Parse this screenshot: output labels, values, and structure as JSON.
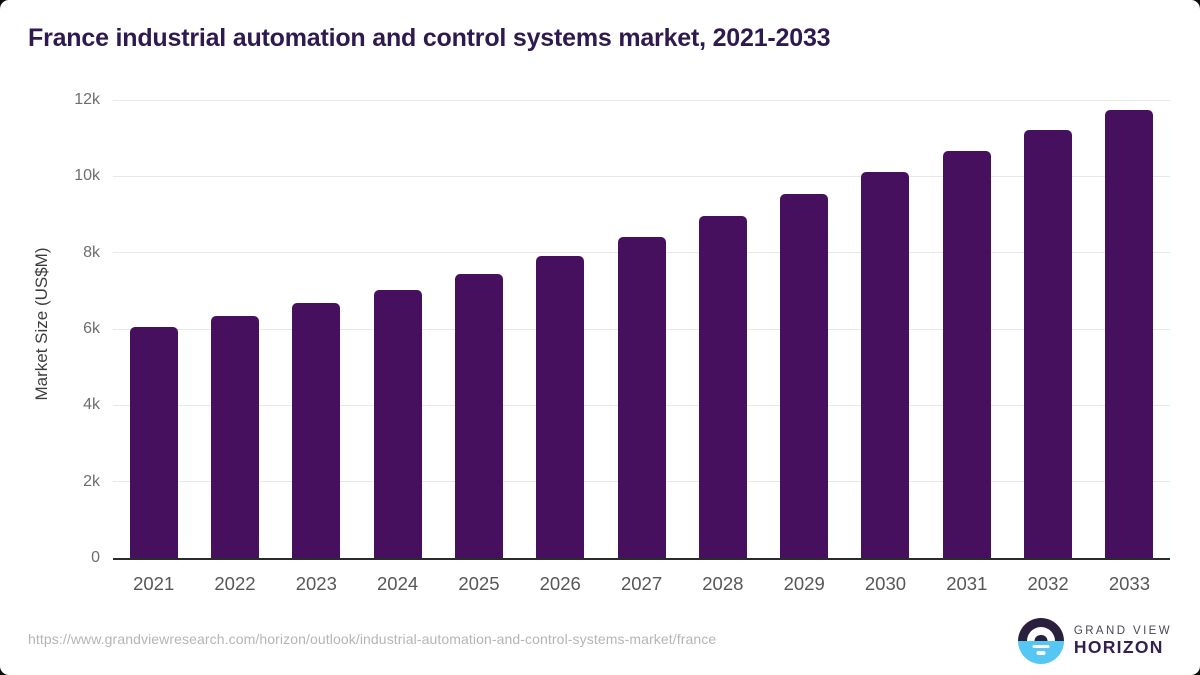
{
  "title": "France industrial automation and control systems market, 2021-2033",
  "footer": {
    "source_url": "https://www.grandviewresearch.com/horizon/outlook/industrial-automation-and-control-systems-market/france",
    "logo": {
      "line1": "GRAND VIEW",
      "line2": "HORIZON"
    }
  },
  "colors": {
    "bar": "#47105f",
    "title_text": "#2e1a4e",
    "gridline": "#e8e8e8",
    "axis_line": "#2b2b2b",
    "y_tick_text": "#6e6e6e",
    "x_tick_text": "#575757",
    "url_text": "#b5b5b5",
    "logo_dark": "#2a1f3d",
    "logo_blue": "#56c6f2"
  },
  "chart_data": {
    "type": "bar",
    "title": "France industrial automation and control systems market, 2021-2033",
    "categories": [
      "2021",
      "2022",
      "2023",
      "2024",
      "2025",
      "2026",
      "2027",
      "2028",
      "2029",
      "2030",
      "2031",
      "2032",
      "2033"
    ],
    "values": [
      6050,
      6330,
      6670,
      7030,
      7450,
      7920,
      8420,
      8970,
      9530,
      10110,
      10670,
      11220,
      11730
    ],
    "xlabel": "",
    "ylabel": "Market Size (US$M)",
    "ylim": [
      0,
      12000
    ],
    "y_ticks": [
      {
        "value": 0,
        "label": "0"
      },
      {
        "value": 2000,
        "label": "2k"
      },
      {
        "value": 4000,
        "label": "4k"
      },
      {
        "value": 6000,
        "label": "6k"
      },
      {
        "value": 8000,
        "label": "8k"
      },
      {
        "value": 10000,
        "label": "10k"
      },
      {
        "value": 12000,
        "label": "12k"
      }
    ],
    "grid": "horizontal",
    "legend": "none",
    "bar_color": "#47105f"
  }
}
